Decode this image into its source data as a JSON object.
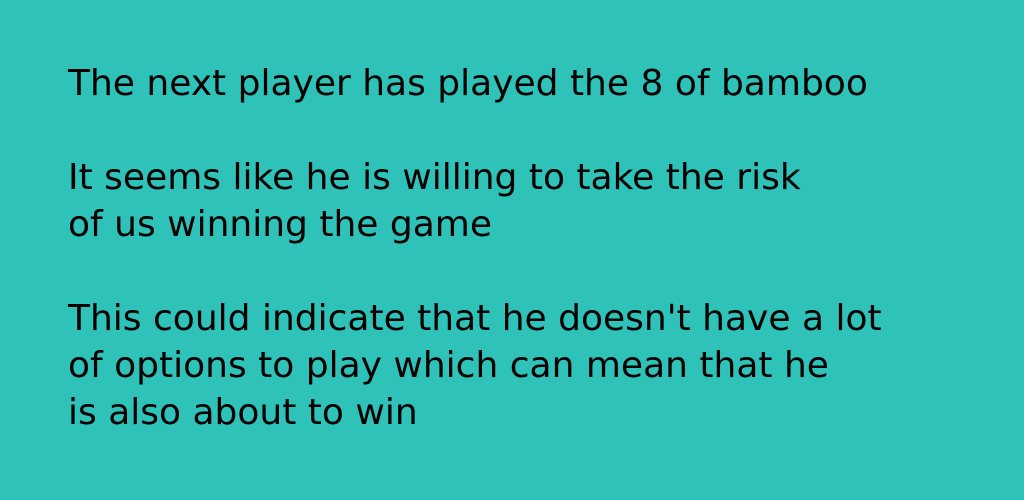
{
  "background_color": "#2ec2b9",
  "text_color": "#000000",
  "paragraphs": [
    {
      "lines": [
        "The next player has played the 8 of bamboo"
      ]
    },
    {
      "lines": [
        "It seems like he is willing to take the risk",
        "of us winning the game"
      ]
    },
    {
      "lines": [
        "This could indicate that he doesn't have a lot",
        "of options to play which can mean that he",
        "is also about to win"
      ]
    }
  ]
}
